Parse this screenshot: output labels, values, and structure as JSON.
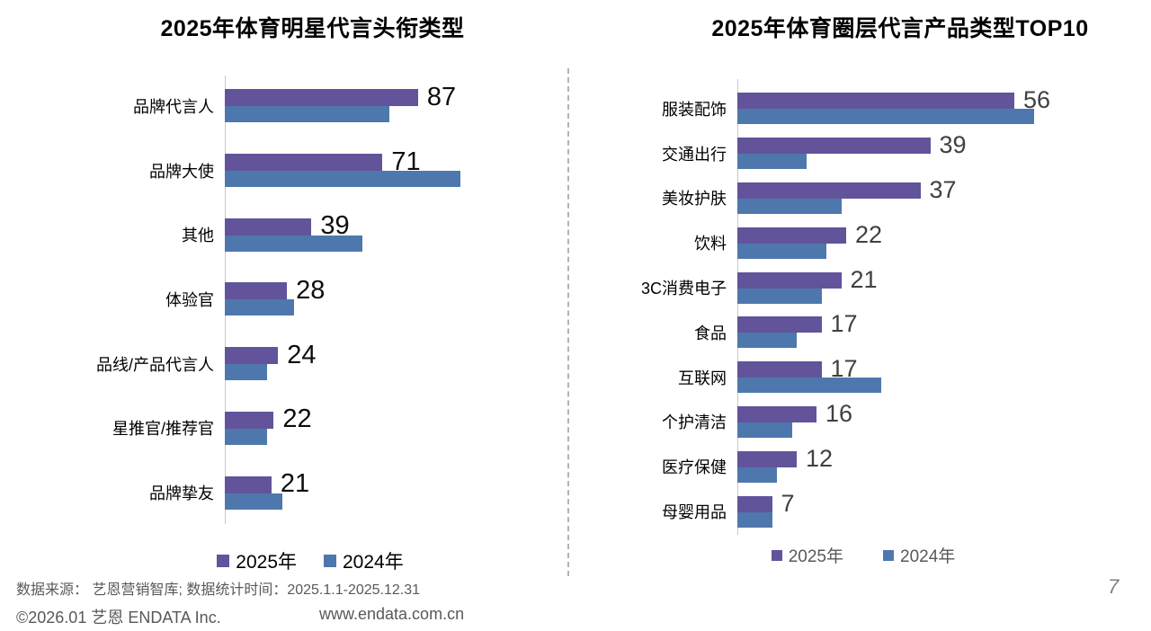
{
  "chart_data": [
    {
      "type": "bar",
      "orientation": "horizontal",
      "title": "2025年体育明星代言头衔类型",
      "categories": [
        "品牌代言人",
        "品牌大使",
        "其他",
        "体验官",
        "品线/产品代言人",
        "星推官/推荐官",
        "品牌挚友"
      ],
      "series": [
        {
          "name": "2025年",
          "color": "#62539B",
          "values": [
            87,
            71,
            39,
            28,
            24,
            22,
            21
          ],
          "values_labeled": true
        },
        {
          "name": "2024年",
          "color": "#4E78AD",
          "values": [
            74,
            106,
            62,
            31,
            19,
            19,
            26
          ],
          "values_labeled": false
        }
      ],
      "data_labels_series": "2025年",
      "legend": {
        "position": "bottom",
        "labels": [
          "2025年",
          "2024年"
        ]
      },
      "xlim": [
        0,
        115
      ],
      "grid": false
    },
    {
      "type": "bar",
      "orientation": "horizontal",
      "title": "2025年体育圈层代言产品类型TOP10",
      "categories": [
        "服装配饰",
        "交通出行",
        "美妆护肤",
        "饮料",
        "3C消费电子",
        "食品",
        "互联网",
        "个护清洁",
        "医疗保健",
        "母婴用品"
      ],
      "series": [
        {
          "name": "2025年",
          "color": "#62539B",
          "values": [
            56,
            39,
            37,
            22,
            21,
            17,
            17,
            16,
            12,
            7
          ],
          "values_labeled": true
        },
        {
          "name": "2024年",
          "color": "#4E78AD",
          "values": [
            60,
            14,
            21,
            18,
            17,
            12,
            29,
            11,
            8,
            7
          ],
          "values_labeled": false
        }
      ],
      "data_labels_series": "2025年",
      "legend": {
        "position": "bottom",
        "labels": [
          "2025年",
          "2024年"
        ]
      },
      "xlim": [
        0,
        80
      ],
      "grid": false
    }
  ],
  "footer": {
    "source_line": "数据来源： 艺恩营销智库;  数据统计时间：2025.1.1-2025.12.31",
    "copyright": "©2026.01 艺恩 ENDATA Inc.",
    "website": "www.endata.com.cn",
    "page_number": "7"
  },
  "colors": {
    "series_2025": "#62539B",
    "series_2024": "#4E78AD",
    "axis_line": "#C9C9C9",
    "divider": "#B3B3B3",
    "footer_text": "#595959",
    "value_label_left": "#0D0D0D",
    "value_label_right": "#404040"
  }
}
